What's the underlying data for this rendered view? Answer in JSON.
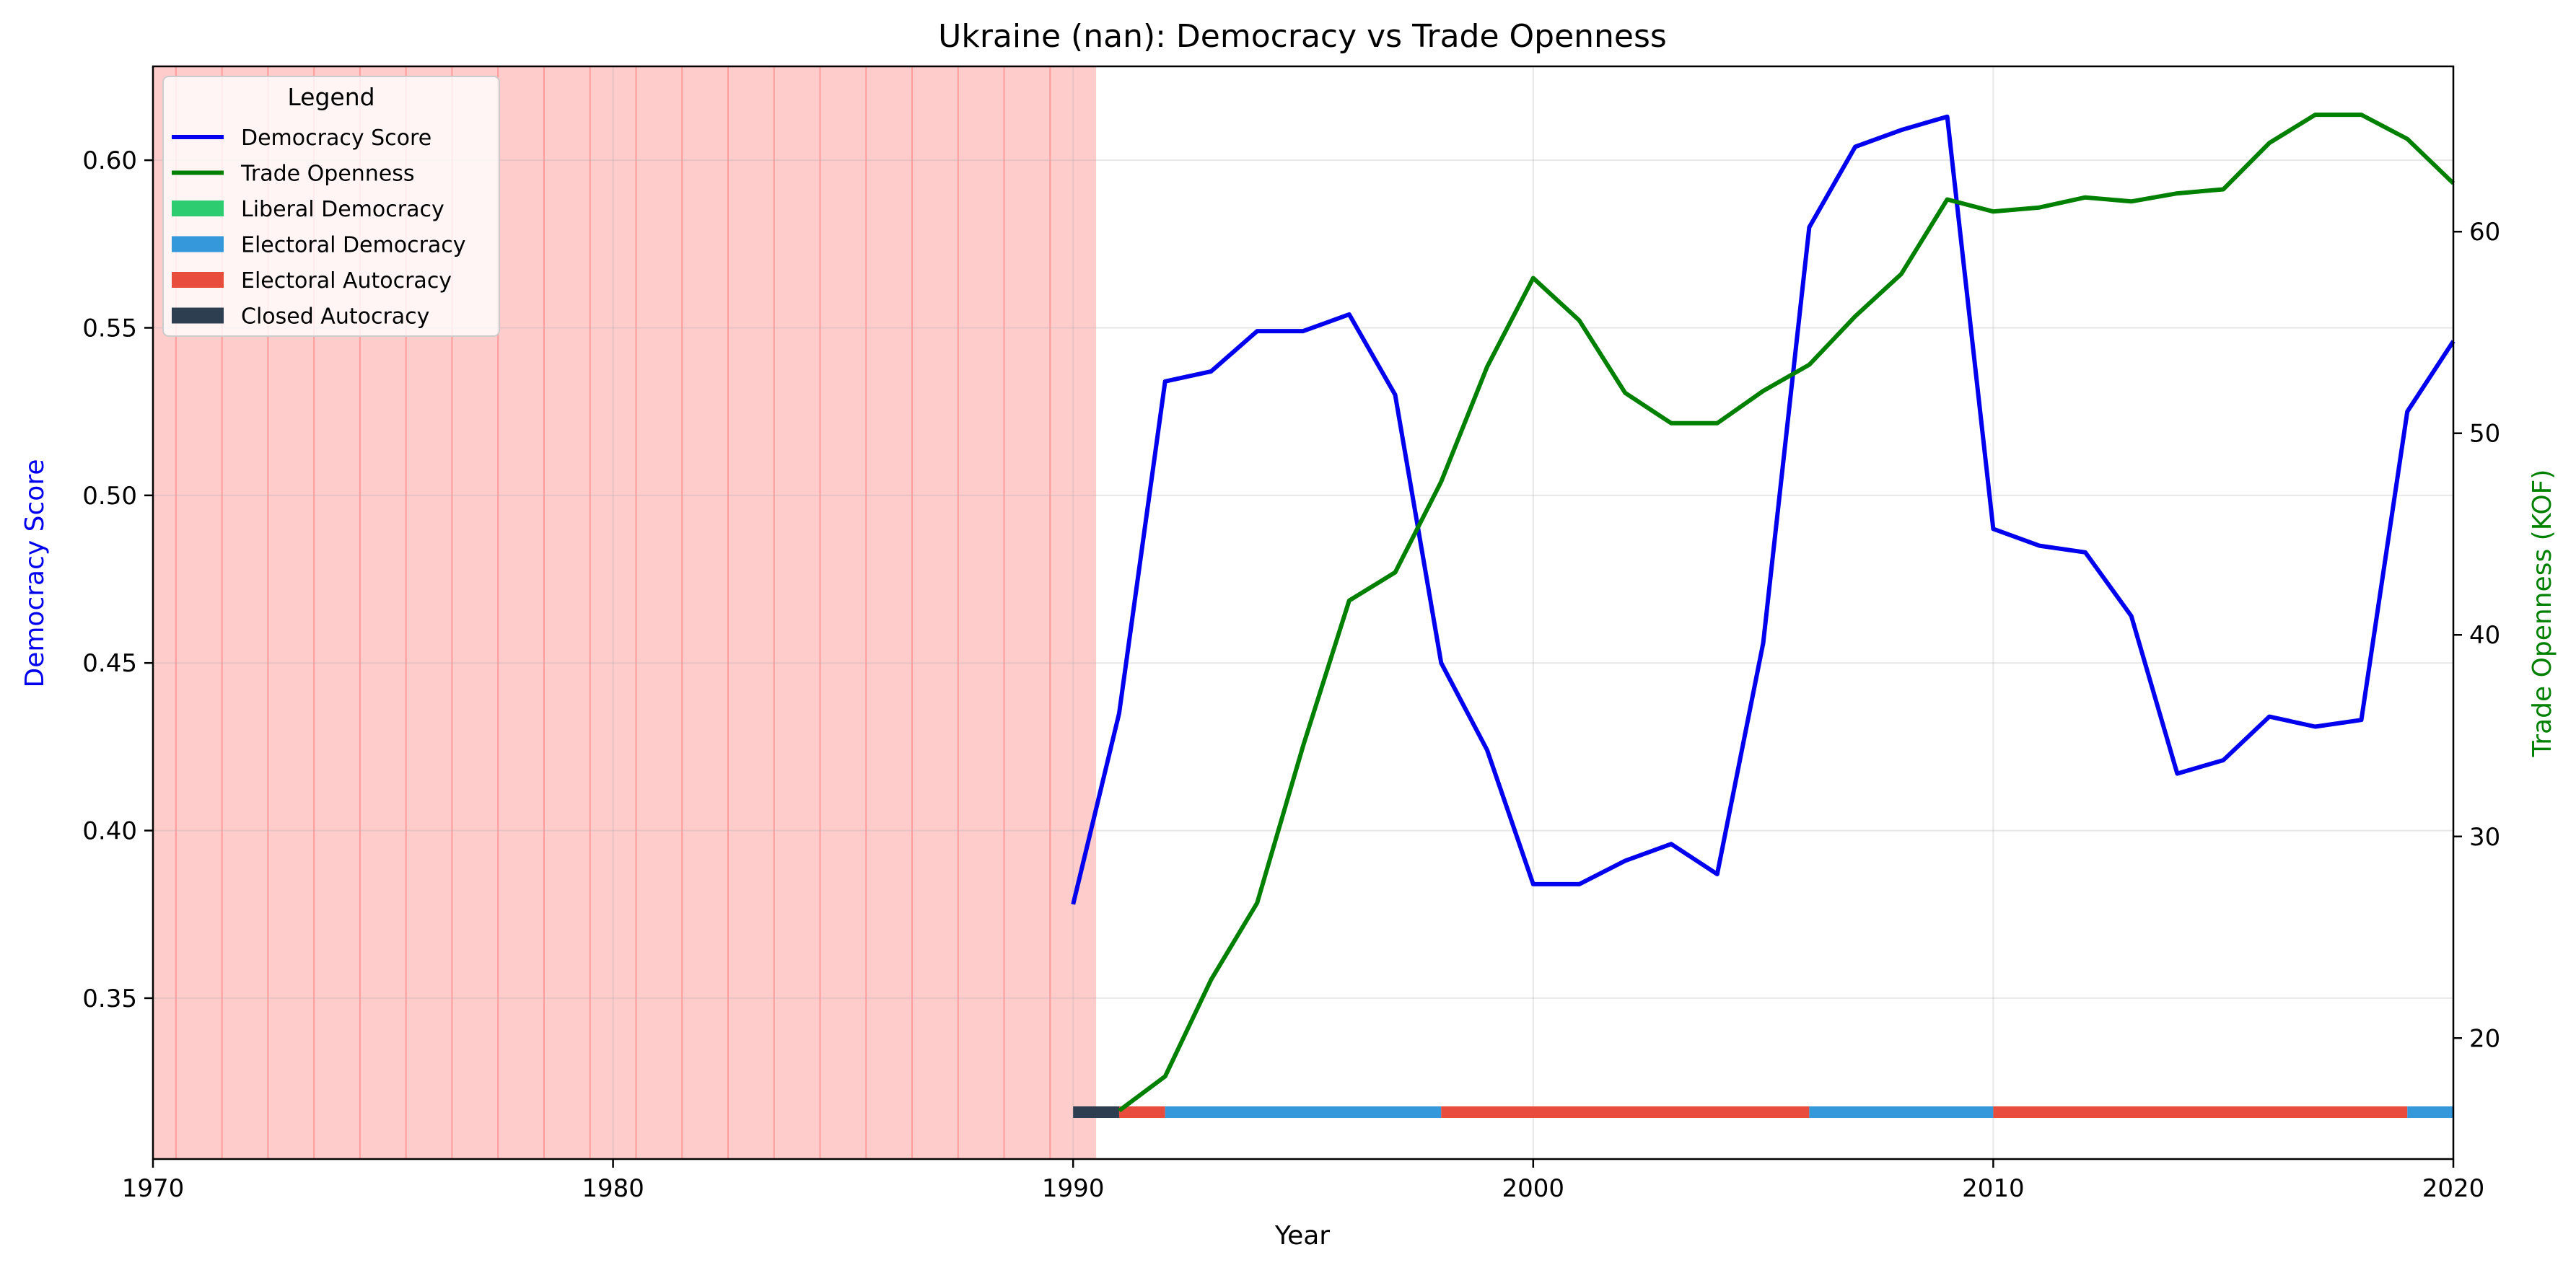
{
  "chart_data": {
    "type": "line",
    "title": "Ukraine (nan): Democracy vs Trade Openness",
    "xlabel": "Year",
    "ylabel_left": "Democracy Score",
    "ylabel_right": "Trade Openness (KOF)",
    "xlim": [
      1970,
      2020
    ],
    "ylim_left": [
      0.302,
      0.628
    ],
    "ylim_right": [
      14.0,
      68.2
    ],
    "x_ticks": [
      1970,
      1980,
      1990,
      2000,
      2010,
      2020
    ],
    "y_ticks_left": [
      "0.35",
      "0.40",
      "0.45",
      "0.50",
      "0.55",
      "0.60"
    ],
    "y_ticks_right": [
      "20",
      "30",
      "40",
      "50",
      "60"
    ],
    "grid": true,
    "legend": {
      "title": "Legend",
      "placement": "top-left",
      "entries": [
        {
          "label": "Democracy Score",
          "kind": "line",
          "color": "#0000ee"
        },
        {
          "label": "Trade Openness",
          "kind": "line",
          "color": "#008000"
        },
        {
          "label": "Liberal Democracy",
          "kind": "patch",
          "color": "#2ecc71"
        },
        {
          "label": "Electoral Democracy",
          "kind": "patch",
          "color": "#3498db"
        },
        {
          "label": "Electoral Autocracy",
          "kind": "patch",
          "color": "#e74c3c"
        },
        {
          "label": "Closed Autocracy",
          "kind": "patch",
          "color": "#2c3e50"
        }
      ]
    },
    "shaded_region": {
      "x_start": 1970,
      "x_end": 1990.5,
      "color": "#ff9999",
      "line_color": "#ff6b6b"
    },
    "series": [
      {
        "name": "Democracy Score",
        "axis": "left",
        "color": "#0000ee",
        "x": [
          1990,
          1991,
          1992,
          1993,
          1994,
          1995,
          1996,
          1997,
          1998,
          1999,
          2000,
          2001,
          2002,
          2003,
          2004,
          2005,
          2006,
          2007,
          2008,
          2009,
          2010,
          2011,
          2012,
          2013,
          2014,
          2015,
          2016,
          2017,
          2018,
          2019,
          2020
        ],
        "values": [
          0.378,
          0.435,
          0.534,
          0.537,
          0.549,
          0.549,
          0.554,
          0.53,
          0.45,
          0.424,
          0.384,
          0.384,
          0.391,
          0.396,
          0.387,
          0.456,
          0.58,
          0.604,
          0.609,
          0.613,
          0.49,
          0.485,
          0.483,
          0.464,
          0.417,
          0.421,
          0.434,
          0.431,
          0.433,
          0.525,
          0.546
        ]
      },
      {
        "name": "Trade Openness",
        "axis": "right",
        "color": "#008000",
        "x": [
          1991,
          1992,
          1993,
          1994,
          1995,
          1996,
          1997,
          1998,
          1999,
          2000,
          2001,
          2002,
          2003,
          2004,
          2005,
          2006,
          2007,
          2008,
          2009,
          2010,
          2011,
          2012,
          2013,
          2014,
          2015,
          2016,
          2017,
          2018,
          2019,
          2020
        ],
        "values": [
          16.4,
          18.1,
          22.9,
          26.7,
          34.5,
          41.7,
          43.1,
          47.6,
          53.3,
          57.7,
          55.6,
          52.0,
          50.5,
          50.5,
          52.1,
          53.4,
          55.8,
          57.9,
          61.6,
          61.0,
          61.2,
          61.7,
          61.5,
          61.9,
          62.1,
          64.4,
          65.8,
          65.8,
          64.6,
          62.4
        ]
      }
    ],
    "regime_bar": {
      "y_value": 0.316,
      "segments": [
        {
          "start": 1990,
          "end": 1991,
          "regime": "Closed Autocracy",
          "color": "#2c3e50"
        },
        {
          "start": 1991,
          "end": 1992,
          "regime": "Electoral Autocracy",
          "color": "#e74c3c"
        },
        {
          "start": 1992,
          "end": 1998,
          "regime": "Electoral Democracy",
          "color": "#3498db"
        },
        {
          "start": 1998,
          "end": 2006,
          "regime": "Electoral Autocracy",
          "color": "#e74c3c"
        },
        {
          "start": 2006,
          "end": 2010,
          "regime": "Electoral Democracy",
          "color": "#3498db"
        },
        {
          "start": 2010,
          "end": 2019,
          "regime": "Electoral Autocracy",
          "color": "#e74c3c"
        },
        {
          "start": 2019,
          "end": 2020,
          "regime": "Electoral Democracy",
          "color": "#3498db"
        }
      ]
    }
  }
}
